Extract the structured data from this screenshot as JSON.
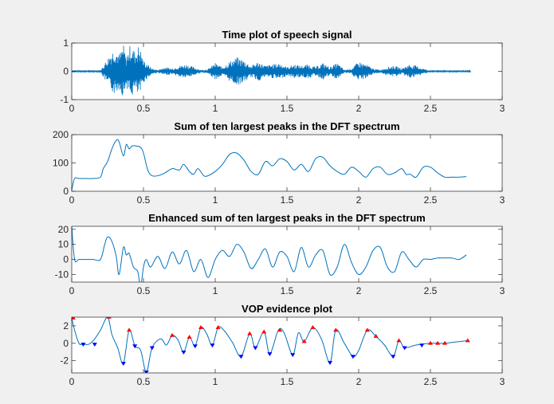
{
  "window": {
    "background": "#f0f0f0"
  },
  "chart_data": [
    {
      "type": "line",
      "title": "Time plot of speech signal",
      "xlabel": "",
      "ylabel": "",
      "xlim": [
        0,
        3
      ],
      "ylim": [
        -1,
        1
      ],
      "xticks": [
        0,
        0.5,
        1,
        1.5,
        2,
        2.5,
        3
      ],
      "xticklabels": [
        "0",
        "0.5",
        "1",
        "1.5",
        "2",
        "2.5",
        "3"
      ],
      "yticks": [
        -1,
        0,
        1
      ],
      "yticklabels": [
        "-1",
        "0",
        "1"
      ],
      "grid": false,
      "color": "#0072bd",
      "waveform_envelope": {
        "x": [
          0.0,
          0.2,
          0.23,
          0.27,
          0.3,
          0.33,
          0.36,
          0.38,
          0.41,
          0.44,
          0.47,
          0.5,
          0.53,
          0.56,
          0.6,
          0.65,
          0.7,
          0.75,
          0.8,
          0.85,
          0.9,
          0.95,
          1.0,
          1.05,
          1.1,
          1.15,
          1.2,
          1.25,
          1.3,
          1.35,
          1.4,
          1.45,
          1.5,
          1.55,
          1.6,
          1.65,
          1.7,
          1.75,
          1.8,
          1.85,
          1.9,
          1.95,
          2.0,
          2.05,
          2.1,
          2.15,
          2.2,
          2.25,
          2.3,
          2.35,
          2.4,
          2.45,
          2.5,
          2.6,
          2.78
        ],
        "amplitude": [
          0.02,
          0.02,
          0.3,
          0.65,
          0.85,
          0.6,
          0.95,
          0.5,
          1.0,
          0.7,
          0.95,
          0.4,
          0.25,
          0.1,
          0.05,
          0.15,
          0.1,
          0.2,
          0.25,
          0.15,
          0.05,
          0.08,
          0.3,
          0.15,
          0.35,
          0.5,
          0.4,
          0.2,
          0.35,
          0.2,
          0.25,
          0.3,
          0.15,
          0.25,
          0.2,
          0.25,
          0.15,
          0.3,
          0.15,
          0.3,
          0.05,
          0.1,
          0.35,
          0.25,
          0.1,
          0.05,
          0.15,
          0.2,
          0.1,
          0.25,
          0.2,
          0.1,
          0.02,
          0.02,
          0.02
        ]
      }
    },
    {
      "type": "line",
      "title": "Sum of ten largest peaks in the DFT spectrum",
      "xlabel": "",
      "ylabel": "",
      "xlim": [
        0,
        3
      ],
      "ylim": [
        0,
        200
      ],
      "xticks": [
        0,
        0.5,
        1,
        1.5,
        2,
        2.5,
        3
      ],
      "xticklabels": [
        "0",
        "0.5",
        "1",
        "1.5",
        "2",
        "2.5",
        "3"
      ],
      "yticks": [
        0,
        100,
        200
      ],
      "yticklabels": [
        "0",
        "100",
        "200"
      ],
      "grid": false,
      "color": "#0072bd",
      "x": [
        0.0,
        0.02,
        0.05,
        0.1,
        0.15,
        0.2,
        0.22,
        0.25,
        0.28,
        0.31,
        0.33,
        0.36,
        0.38,
        0.4,
        0.42,
        0.45,
        0.48,
        0.5,
        0.53,
        0.56,
        0.6,
        0.65,
        0.7,
        0.75,
        0.78,
        0.82,
        0.85,
        0.88,
        0.92,
        0.95,
        1.0,
        1.05,
        1.1,
        1.15,
        1.2,
        1.25,
        1.3,
        1.35,
        1.4,
        1.45,
        1.5,
        1.55,
        1.6,
        1.65,
        1.7,
        1.75,
        1.8,
        1.85,
        1.9,
        1.95,
        2.0,
        2.05,
        2.1,
        2.15,
        2.2,
        2.25,
        2.3,
        2.33,
        2.36,
        2.4,
        2.45,
        2.5,
        2.55,
        2.6,
        2.65,
        2.7,
        2.75
      ],
      "y": [
        5,
        45,
        45,
        45,
        45,
        50,
        80,
        105,
        150,
        180,
        175,
        125,
        165,
        150,
        160,
        160,
        155,
        135,
        75,
        55,
        55,
        65,
        80,
        75,
        95,
        70,
        60,
        80,
        55,
        55,
        70,
        95,
        130,
        135,
        110,
        70,
        60,
        105,
        90,
        115,
        105,
        75,
        95,
        70,
        115,
        120,
        90,
        70,
        60,
        85,
        70,
        50,
        80,
        85,
        60,
        65,
        80,
        60,
        60,
        50,
        85,
        85,
        65,
        50,
        50,
        50,
        52
      ]
    },
    {
      "type": "line",
      "title": "Enhanced sum of ten largest peaks in the DFT spectrum",
      "xlabel": "",
      "ylabel": "",
      "xlim": [
        0,
        3
      ],
      "ylim": [
        -15,
        22
      ],
      "xticks": [
        0,
        0.5,
        1,
        1.5,
        2,
        2.5,
        3
      ],
      "xticklabels": [
        "0",
        "0.5",
        "1",
        "1.5",
        "2",
        "2.5",
        "3"
      ],
      "yticks": [
        -10,
        0,
        10,
        20
      ],
      "yticklabels": [
        "-10",
        "0",
        "10",
        "20"
      ],
      "grid": false,
      "color": "#0072bd",
      "x": [
        0.0,
        0.02,
        0.05,
        0.1,
        0.15,
        0.2,
        0.23,
        0.25,
        0.28,
        0.31,
        0.33,
        0.36,
        0.38,
        0.4,
        0.43,
        0.46,
        0.48,
        0.5,
        0.52,
        0.55,
        0.6,
        0.65,
        0.7,
        0.75,
        0.8,
        0.85,
        0.9,
        0.95,
        1.0,
        1.05,
        1.1,
        1.15,
        1.2,
        1.25,
        1.3,
        1.35,
        1.4,
        1.45,
        1.5,
        1.55,
        1.6,
        1.65,
        1.7,
        1.75,
        1.8,
        1.85,
        1.9,
        1.95,
        2.0,
        2.05,
        2.1,
        2.15,
        2.2,
        2.25,
        2.3,
        2.35,
        2.4,
        2.45,
        2.5,
        2.55,
        2.6,
        2.65,
        2.7,
        2.75
      ],
      "y": [
        22,
        0,
        0,
        0,
        0,
        0,
        10,
        15,
        12,
        2,
        -10,
        8,
        3,
        4,
        -5,
        -8,
        -18,
        -5,
        0,
        -5,
        2,
        -6,
        5,
        -3,
        6,
        -8,
        0,
        -12,
        0,
        6,
        2,
        10,
        5,
        -6,
        0,
        7,
        -5,
        5,
        2,
        -8,
        8,
        -5,
        3,
        6,
        -10,
        -5,
        10,
        -2,
        -10,
        -5,
        6,
        8,
        -5,
        -8,
        5,
        0,
        -5,
        0,
        0,
        1,
        1,
        1,
        0,
        3
      ]
    },
    {
      "type": "line",
      "title": "VOP evidence plot",
      "xlabel": "",
      "ylabel": "",
      "xlim": [
        0,
        3
      ],
      "ylim": [
        -3.4,
        3
      ],
      "xticks": [
        0,
        0.5,
        1,
        1.5,
        2,
        2.5,
        3
      ],
      "xticklabels": [
        "0",
        "0.5",
        "1",
        "1.5",
        "2",
        "2.5",
        "3"
      ],
      "yticks": [
        -2,
        0,
        2
      ],
      "yticklabels": [
        "-2",
        "0",
        "2"
      ],
      "grid": false,
      "color": "#0072bd",
      "x": [
        0.0,
        0.02,
        0.05,
        0.08,
        0.12,
        0.16,
        0.2,
        0.25,
        0.28,
        0.32,
        0.36,
        0.4,
        0.44,
        0.48,
        0.52,
        0.56,
        0.62,
        0.66,
        0.7,
        0.74,
        0.78,
        0.82,
        0.86,
        0.9,
        0.94,
        0.98,
        1.02,
        1.06,
        1.12,
        1.18,
        1.24,
        1.28,
        1.34,
        1.38,
        1.44,
        1.48,
        1.54,
        1.58,
        1.62,
        1.68,
        1.74,
        1.8,
        1.84,
        1.9,
        1.96,
        2.0,
        2.06,
        2.12,
        2.18,
        2.24,
        2.28,
        2.32,
        2.4,
        2.5,
        2.55,
        2.6,
        2.7,
        2.76
      ],
      "y": [
        2.9,
        1.5,
        0,
        -0.1,
        -0.1,
        0.5,
        1.5,
        3.0,
        1.0,
        -0.5,
        -2.3,
        1.5,
        -0.3,
        -0.8,
        -3.3,
        -0.5,
        0.5,
        -0.2,
        0.9,
        0.4,
        -1.0,
        0.7,
        -0.3,
        1.8,
        1.1,
        -0.2,
        1.8,
        1.5,
        0.1,
        -1.5,
        1.1,
        -0.5,
        1.3,
        -1.2,
        1.5,
        1.2,
        -1.3,
        1.2,
        0.2,
        1.8,
        0.5,
        -2.2,
        1.5,
        0.0,
        -1.5,
        -0.8,
        1.5,
        0.8,
        -0.2,
        -1.5,
        0.3,
        -0.5,
        -0.2,
        0.0,
        0.0,
        0.0,
        0.2,
        0.3
      ],
      "maxima_marker_color": "#ff0000",
      "minima_marker_color": "#0000ff",
      "maxima": {
        "x": [
          0.01,
          0.26,
          0.4,
          0.7,
          0.82,
          0.9,
          1.02,
          1.24,
          1.34,
          1.45,
          1.62,
          1.68,
          1.84,
          2.06,
          2.12,
          2.28,
          2.5,
          2.55,
          2.6,
          2.76
        ],
        "y": [
          2.9,
          3.0,
          1.5,
          0.9,
          0.7,
          1.8,
          1.8,
          1.1,
          1.3,
          1.5,
          0.2,
          1.8,
          1.5,
          1.5,
          0.8,
          0.3,
          0.0,
          0.0,
          0.0,
          0.3
        ]
      },
      "minima": {
        "x": [
          0.08,
          0.16,
          0.36,
          0.44,
          0.52,
          0.56,
          0.78,
          0.86,
          0.98,
          1.18,
          1.28,
          1.38,
          1.54,
          1.8,
          1.96,
          2.24,
          2.32,
          2.44
        ],
        "y": [
          -0.1,
          -0.1,
          -2.3,
          -0.3,
          -3.3,
          -0.5,
          -1.0,
          -0.3,
          -0.2,
          -1.5,
          -0.5,
          -1.2,
          -1.3,
          -2.2,
          -1.5,
          -1.5,
          -0.5,
          -0.2
        ]
      }
    }
  ]
}
